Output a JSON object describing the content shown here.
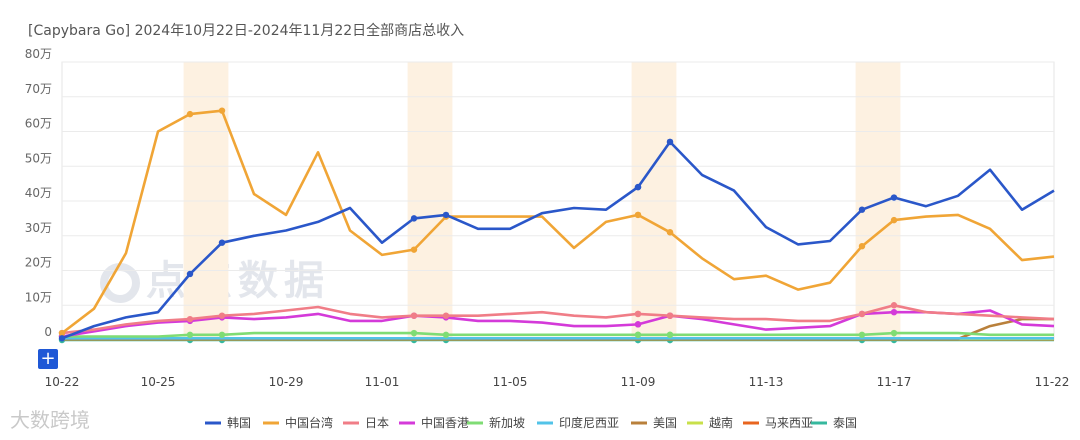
{
  "title": "[Capybara Go] 2024年10月22日-2024年11月22日全部商店总收入",
  "watermark_top": "点点数据",
  "watermark_bottom": "大数跨境",
  "add_button": "+",
  "chart_data": {
    "type": "line",
    "title": "[Capybara Go] 2024年10月22日-2024年11月22日全部商店总收入",
    "x": [
      "10-22",
      "10-23",
      "10-24",
      "10-25",
      "10-26",
      "10-27",
      "10-28",
      "10-29",
      "10-30",
      "10-31",
      "11-01",
      "11-02",
      "11-03",
      "11-04",
      "11-05",
      "11-06",
      "11-07",
      "11-08",
      "11-09",
      "11-10",
      "11-11",
      "11-12",
      "11-13",
      "11-14",
      "11-15",
      "11-16",
      "11-17",
      "11-18",
      "11-19",
      "11-20",
      "11-21",
      "11-22"
    ],
    "x_tick_labels": [
      "10-22",
      "10-25",
      "10-29",
      "11-01",
      "11-05",
      "11-09",
      "11-13",
      "11-17",
      "11-22"
    ],
    "y_tick_labels": [
      "0",
      "10万",
      "20万",
      "30万",
      "40万",
      "50万",
      "60万",
      "70万",
      "80万"
    ],
    "ylim": [
      0,
      80
    ],
    "y_unit": "万",
    "grid": true,
    "legend_position": "bottom",
    "highlight_ranges": [
      [
        "10-26",
        "10-27"
      ],
      [
        "11-02",
        "11-03"
      ],
      [
        "11-09",
        "11-10"
      ],
      [
        "11-16",
        "11-17"
      ]
    ],
    "series": [
      {
        "name": "韩国",
        "color": "#2a57c9",
        "markers": true,
        "values": [
          0.5,
          4,
          6.5,
          8,
          19,
          28,
          30,
          31.5,
          34,
          38,
          28,
          35,
          36,
          32,
          32,
          36.5,
          38,
          37.5,
          44,
          57,
          47.5,
          43,
          32.5,
          27.5,
          28.5,
          37.5,
          41,
          38.5,
          41.5,
          49,
          37.5,
          43
        ]
      },
      {
        "name": "中国台湾",
        "color": "#f0a536",
        "markers": true,
        "values": [
          2,
          9,
          25,
          60,
          65,
          66,
          42,
          36,
          54,
          31.5,
          24.5,
          26,
          35.5,
          35.5,
          35.5,
          35.5,
          26.5,
          34,
          36,
          31,
          23.5,
          17.5,
          18.5,
          14.5,
          16.5,
          27,
          34.5,
          35.5,
          36,
          32,
          23,
          24
        ]
      },
      {
        "name": "日本",
        "color": "#f07d87",
        "markers": true,
        "values": [
          2,
          3,
          4.5,
          5.5,
          6,
          7,
          7.5,
          8.5,
          9.5,
          7.5,
          6.5,
          7,
          7,
          7,
          7.5,
          8,
          7,
          6.5,
          7.5,
          7,
          6.5,
          6,
          6,
          5.5,
          5.5,
          7.5,
          10,
          8,
          7.5,
          7,
          6.5,
          6
        ]
      },
      {
        "name": "中国香港",
        "color": "#d43ad9",
        "markers": true,
        "values": [
          1,
          2.5,
          4,
          5,
          5.5,
          6.5,
          6,
          6.5,
          7.5,
          5.5,
          5.5,
          7,
          6.5,
          5.5,
          5.5,
          5,
          4,
          4,
          4.5,
          7,
          6,
          4.5,
          3,
          3.5,
          4,
          7.5,
          8,
          8,
          7.5,
          8.5,
          4.5,
          4
        ]
      },
      {
        "name": "新加坡",
        "color": "#7fdc74",
        "markers": true,
        "values": [
          1,
          1,
          1,
          1,
          1.5,
          1.5,
          2,
          2,
          2,
          2,
          2,
          2,
          1.5,
          1.5,
          1.5,
          1.5,
          1.5,
          1.5,
          1.5,
          1.5,
          1.5,
          1.5,
          1.5,
          1.5,
          1.5,
          1.5,
          2,
          2,
          2,
          1.5,
          1.5,
          1.5
        ]
      },
      {
        "name": "印度尼西亚",
        "color": "#52c3e8",
        "markers": false,
        "values": [
          0.5,
          0.5,
          0.5,
          0.5,
          0.5,
          0.5,
          0.5,
          0.5,
          0.5,
          0.5,
          0.5,
          0.5,
          0.5,
          0.5,
          0.5,
          0.5,
          0.5,
          0.5,
          0.5,
          0.5,
          0.5,
          0.5,
          0.5,
          0.5,
          0.5,
          0.5,
          0.5,
          0.5,
          0.5,
          0.5,
          0.5,
          0.5
        ]
      },
      {
        "name": "美国",
        "color": "#b9803b",
        "markers": false,
        "values": [
          0.3,
          0.3,
          0.3,
          0.3,
          0.3,
          0.3,
          0.3,
          0.3,
          0.3,
          0.3,
          0.3,
          0.3,
          0.3,
          0.3,
          0.3,
          0.3,
          0.3,
          0.3,
          0.3,
          0.3,
          0.3,
          0.3,
          0.3,
          0.3,
          0.3,
          0.3,
          0.3,
          0.3,
          0.3,
          4,
          6,
          6
        ]
      },
      {
        "name": "越南",
        "color": "#c8e04a",
        "markers": false,
        "values": [
          0.3,
          0.3,
          0.3,
          0.3,
          0.3,
          0.3,
          0.3,
          0.3,
          0.3,
          0.3,
          0.3,
          0.3,
          0.3,
          0.3,
          0.3,
          0.3,
          0.3,
          0.3,
          0.3,
          0.3,
          0.3,
          0.3,
          0.3,
          0.3,
          0.3,
          0.3,
          0.3,
          0.3,
          0.3,
          0.3,
          0.3,
          0.3
        ]
      },
      {
        "name": "马来西亚",
        "color": "#e8651f",
        "markers": false,
        "values": [
          0.2,
          0.2,
          0.2,
          0.2,
          0.2,
          0.2,
          0.2,
          0.2,
          0.2,
          0.2,
          0.2,
          0.2,
          0.2,
          0.2,
          0.2,
          0.2,
          0.2,
          0.2,
          0.2,
          0.2,
          0.2,
          0.2,
          0.2,
          0.2,
          0.2,
          0.2,
          0.2,
          0.2,
          0.2,
          0.2,
          0.2,
          0.2
        ]
      },
      {
        "name": "泰国",
        "color": "#36b89e",
        "markers": true,
        "values": [
          0,
          0,
          0,
          0,
          0,
          0,
          0,
          0,
          0,
          0,
          0,
          0,
          0,
          0,
          0,
          0,
          0,
          0,
          0,
          0,
          0,
          0,
          0,
          0,
          0,
          0,
          0,
          0,
          0,
          0,
          0,
          0
        ]
      }
    ]
  }
}
